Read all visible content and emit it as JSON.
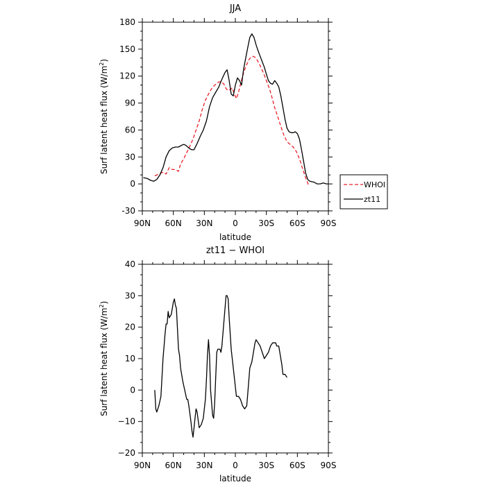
{
  "chart_data": [
    {
      "type": "line",
      "title": "JJA",
      "xlabel": "latitude",
      "ylabel": "Surf latent heat flux (W/m²)",
      "xlim": [
        90,
        -90
      ],
      "ylim": [
        -30,
        180
      ],
      "x_ticks": [
        90,
        60,
        30,
        0,
        -30,
        -60,
        -90
      ],
      "x_tick_labels": [
        "90N",
        "60N",
        "30N",
        "0",
        "30S",
        "60S",
        "90S"
      ],
      "y_ticks": [
        -30,
        0,
        30,
        60,
        90,
        120,
        150,
        180
      ],
      "y_tick_labels": [
        "-30",
        "0",
        "30",
        "60",
        "90",
        "120",
        "150",
        "180"
      ],
      "legend": {
        "position": "right",
        "entries": [
          "WHOI",
          "zt11"
        ]
      },
      "series": [
        {
          "name": "WHOI",
          "color": "#e8202a",
          "dash": true,
          "points": [
            [
              78,
              9
            ],
            [
              74,
              11
            ],
            [
              70,
              13
            ],
            [
              67,
              11
            ],
            [
              64,
              18
            ],
            [
              61,
              16
            ],
            [
              58,
              16
            ],
            [
              55,
              14
            ],
            [
              53,
              22
            ],
            [
              50,
              28
            ],
            [
              47,
              35
            ],
            [
              44,
              42
            ],
            [
              41,
              50
            ],
            [
              38,
              60
            ],
            [
              35,
              70
            ],
            [
              32,
              83
            ],
            [
              29,
              93
            ],
            [
              26,
              100
            ],
            [
              23,
              106
            ],
            [
              20,
              110
            ],
            [
              17,
              113
            ],
            [
              14,
              114
            ],
            [
              11,
              111
            ],
            [
              9,
              106
            ],
            [
              7,
              104
            ],
            [
              5,
              105
            ],
            [
              3,
              107
            ],
            [
              1,
              100
            ],
            [
              -1,
              95
            ],
            [
              -3,
              102
            ],
            [
              -5,
              111
            ],
            [
              -7,
              120
            ],
            [
              -9,
              127
            ],
            [
              -11,
              133
            ],
            [
              -13,
              138
            ],
            [
              -15,
              141
            ],
            [
              -17,
              142
            ],
            [
              -19,
              141
            ],
            [
              -21,
              138
            ],
            [
              -23,
              134
            ],
            [
              -25,
              129
            ],
            [
              -27,
              124
            ],
            [
              -29,
              118
            ],
            [
              -31,
              112
            ],
            [
              -33,
              106
            ],
            [
              -35,
              98
            ],
            [
              -38,
              85
            ],
            [
              -41,
              75
            ],
            [
              -44,
              64
            ],
            [
              -47,
              54
            ],
            [
              -50,
              47
            ],
            [
              -53,
              44
            ],
            [
              -56,
              41
            ],
            [
              -59,
              36
            ],
            [
              -62,
              28
            ],
            [
              -65,
              17
            ],
            [
              -68,
              7
            ],
            [
              -71,
              -2
            ]
          ]
        },
        {
          "name": "zt11",
          "color": "#000000",
          "dash": false,
          "points": [
            [
              89,
              7
            ],
            [
              85,
              6
            ],
            [
              82,
              4
            ],
            [
              79,
              3
            ],
            [
              76,
              5
            ],
            [
              73,
              10
            ],
            [
              70,
              18
            ],
            [
              67,
              30
            ],
            [
              64,
              37
            ],
            [
              61,
              40
            ],
            [
              58,
              41
            ],
            [
              55,
              41
            ],
            [
              52,
              43
            ],
            [
              50,
              44
            ],
            [
              48,
              43
            ],
            [
              46,
              41
            ],
            [
              44,
              39
            ],
            [
              42,
              38
            ],
            [
              40,
              38
            ],
            [
              37,
              45
            ],
            [
              34,
              53
            ],
            [
              31,
              60
            ],
            [
              28,
              70
            ],
            [
              25,
              86
            ],
            [
              22,
              96
            ],
            [
              19,
              102
            ],
            [
              16,
              108
            ],
            [
              14,
              114
            ],
            [
              12,
              119
            ],
            [
              10,
              124
            ],
            [
              8,
              127
            ],
            [
              6,
              115
            ],
            [
              4,
              100
            ],
            [
              2,
              98
            ],
            [
              0,
              110
            ],
            [
              -2,
              118
            ],
            [
              -4,
              115
            ],
            [
              -6,
              110
            ],
            [
              -8,
              128
            ],
            [
              -10,
              140
            ],
            [
              -12,
              152
            ],
            [
              -14,
              163
            ],
            [
              -16,
              167
            ],
            [
              -18,
              163
            ],
            [
              -20,
              155
            ],
            [
              -22,
              148
            ],
            [
              -24,
              142
            ],
            [
              -26,
              136
            ],
            [
              -28,
              130
            ],
            [
              -30,
              122
            ],
            [
              -32,
              115
            ],
            [
              -34,
              112
            ],
            [
              -36,
              111
            ],
            [
              -38,
              115
            ],
            [
              -40,
              112
            ],
            [
              -42,
              108
            ],
            [
              -44,
              98
            ],
            [
              -46,
              85
            ],
            [
              -48,
              72
            ],
            [
              -50,
              62
            ],
            [
              -52,
              58
            ],
            [
              -54,
              57
            ],
            [
              -56,
              57
            ],
            [
              -58,
              58
            ],
            [
              -60,
              56
            ],
            [
              -62,
              50
            ],
            [
              -64,
              38
            ],
            [
              -66,
              25
            ],
            [
              -68,
              12
            ],
            [
              -70,
              5
            ],
            [
              -72,
              3
            ],
            [
              -76,
              2
            ],
            [
              -79,
              0
            ],
            [
              -82,
              0
            ],
            [
              -85,
              1
            ],
            [
              -88,
              0
            ],
            [
              -90,
              0
            ]
          ]
        }
      ]
    },
    {
      "type": "line",
      "title": "zt11 − WHOI",
      "xlabel": "latitude",
      "ylabel": "Surf latent heat flux (W/m²)",
      "xlim": [
        90,
        -90
      ],
      "ylim": [
        -20,
        40
      ],
      "x_ticks": [
        90,
        60,
        30,
        0,
        -30,
        -60,
        -90
      ],
      "x_tick_labels": [
        "90N",
        "60N",
        "30N",
        "0",
        "30S",
        "60S",
        "90S"
      ],
      "y_ticks": [
        -20,
        -10,
        0,
        10,
        20,
        30,
        40
      ],
      "y_tick_labels": [
        "−20",
        "−10",
        "0",
        "10",
        "20",
        "30",
        "40"
      ],
      "series": [
        {
          "name": "",
          "color": "#000000",
          "dash": false,
          "points": [
            [
              78,
              0
            ],
            [
              77,
              -6
            ],
            [
              76,
              -7
            ],
            [
              74,
              -5
            ],
            [
              72,
              -2
            ],
            [
              70,
              10
            ],
            [
              68,
              18
            ],
            [
              67,
              21
            ],
            [
              66,
              21
            ],
            [
              65,
              25
            ],
            [
              64,
              23
            ],
            [
              62,
              24
            ],
            [
              60,
              28
            ],
            [
              59,
              29
            ],
            [
              58,
              27
            ],
            [
              57,
              26
            ],
            [
              55,
              13
            ],
            [
              54,
              11
            ],
            [
              53,
              7
            ],
            [
              51,
              3
            ],
            [
              49,
              0
            ],
            [
              47,
              -3
            ],
            [
              46,
              -3
            ],
            [
              45,
              -5
            ],
            [
              43,
              -10
            ],
            [
              42,
              -13
            ],
            [
              41,
              -15
            ],
            [
              39,
              -9
            ],
            [
              38,
              -6
            ],
            [
              37,
              -7
            ],
            [
              35,
              -12
            ],
            [
              33,
              -11
            ],
            [
              31,
              -9
            ],
            [
              29,
              -3
            ],
            [
              28,
              3
            ],
            [
              27,
              11
            ],
            [
              26,
              16
            ],
            [
              25,
              11
            ],
            [
              24,
              0
            ],
            [
              22,
              -8
            ],
            [
              21,
              -9
            ],
            [
              20,
              -4
            ],
            [
              18,
              12
            ],
            [
              17,
              13
            ],
            [
              15,
              13
            ],
            [
              14,
              12
            ],
            [
              13,
              14
            ],
            [
              11,
              22
            ],
            [
              10,
              26
            ],
            [
              9,
              30
            ],
            [
              8,
              30
            ],
            [
              7,
              29
            ],
            [
              6,
              23
            ],
            [
              4,
              13
            ],
            [
              2,
              7
            ],
            [
              0,
              1
            ],
            [
              -1,
              -2
            ],
            [
              -3,
              -2
            ],
            [
              -5,
              -3
            ],
            [
              -7,
              -5
            ],
            [
              -9,
              -6
            ],
            [
              -11,
              -5
            ],
            [
              -12,
              -1
            ],
            [
              -14,
              7
            ],
            [
              -16,
              9
            ],
            [
              -18,
              13
            ],
            [
              -19,
              15
            ],
            [
              -20,
              16
            ],
            [
              -22,
              15
            ],
            [
              -24,
              14
            ],
            [
              -26,
              12
            ],
            [
              -28,
              10
            ],
            [
              -30,
              11
            ],
            [
              -32,
              12
            ],
            [
              -34,
              14
            ],
            [
              -36,
              15
            ],
            [
              -37,
              15
            ],
            [
              -39,
              15
            ],
            [
              -40,
              14
            ],
            [
              -42,
              14
            ],
            [
              -44,
              10
            ],
            [
              -45,
              8
            ],
            [
              -46,
              5
            ],
            [
              -48,
              5
            ],
            [
              -50,
              4
            ]
          ]
        }
      ]
    }
  ]
}
